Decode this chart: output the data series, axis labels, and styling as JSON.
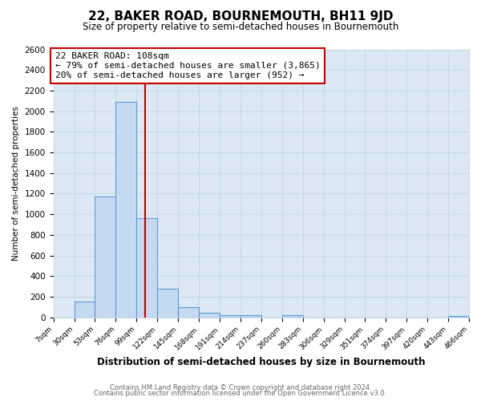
{
  "title": "22, BAKER ROAD, BOURNEMOUTH, BH11 9JD",
  "subtitle": "Size of property relative to semi-detached houses in Bournemouth",
  "xlabel": "Distribution of semi-detached houses by size in Bournemouth",
  "ylabel": "Number of semi-detached properties",
  "footer_lines": [
    "Contains HM Land Registry data © Crown copyright and database right 2024.",
    "Contains public sector information licensed under the Open Government Licence v3.0."
  ],
  "bin_edges": [
    7,
    30,
    53,
    76,
    99,
    122,
    145,
    168,
    191,
    214,
    237,
    260,
    283,
    306,
    329,
    351,
    374,
    397,
    420,
    443,
    466
  ],
  "bar_values": [
    0,
    150,
    1170,
    2090,
    960,
    280,
    100,
    45,
    25,
    20,
    0,
    20,
    0,
    0,
    0,
    0,
    0,
    0,
    0,
    10
  ],
  "bar_color": "#c5d9f0",
  "bar_edge_color": "#5b9bd5",
  "tick_labels": [
    "7sqm",
    "30sqm",
    "53sqm",
    "76sqm",
    "99sqm",
    "122sqm",
    "145sqm",
    "168sqm",
    "191sqm",
    "214sqm",
    "237sqm",
    "260sqm",
    "283sqm",
    "306sqm",
    "329sqm",
    "351sqm",
    "374sqm",
    "397sqm",
    "420sqm",
    "443sqm",
    "466sqm"
  ],
  "vline_x": 108,
  "vline_color": "#c00000",
  "ylim": [
    0,
    2600
  ],
  "yticks": [
    0,
    200,
    400,
    600,
    800,
    1000,
    1200,
    1400,
    1600,
    1800,
    2000,
    2200,
    2400,
    2600
  ],
  "annotation_title": "22 BAKER ROAD: 108sqm",
  "annotation_line1": "← 79% of semi-detached houses are smaller (3,865)",
  "annotation_line2": "20% of semi-detached houses are larger (952) →",
  "annotation_box_facecolor": "#ffffff",
  "annotation_box_edgecolor": "#c00000",
  "grid_color": "#c8d8e8",
  "plot_bg_color": "#dce9f5",
  "figure_bg_color": "#ffffff"
}
